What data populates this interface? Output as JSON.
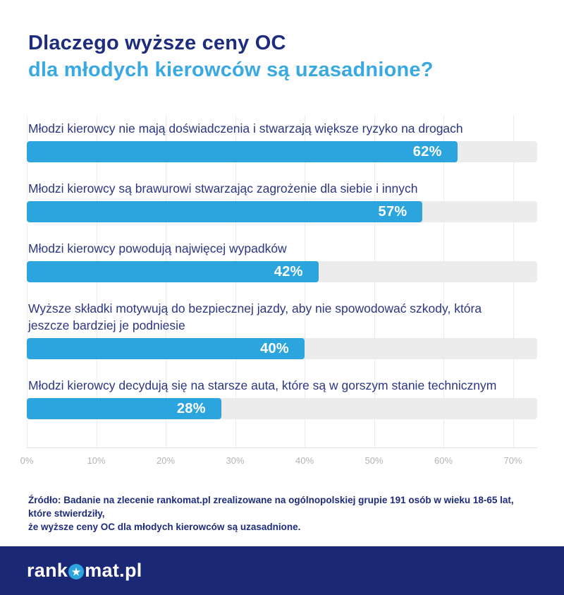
{
  "title": {
    "line1": "Dlaczego wyższe ceny OC",
    "line2": "dla młodych kierowców są uzasadnione?"
  },
  "chart_data": {
    "type": "bar",
    "orientation": "horizontal",
    "categories": [
      "Młodzi kierowcy nie mają doświadczenia i stwarzają większe ryzyko na drogach",
      "Młodzi kierowcy są brawurowi stwarzając zagrożenie dla siebie i innych",
      "Młodzi kierowcy powodują najwięcej wypadków",
      "Wyższe składki motywują do bezpiecznej jazdy, aby nie spowodować szkody, która jeszcze bardziej je podniesie",
      "Młodzi kierowcy decydują się na starsze auta, które są w gorszym stanie technicznym"
    ],
    "values": [
      62,
      57,
      42,
      40,
      28
    ],
    "value_labels": [
      "62%",
      "57%",
      "42%",
      "40%",
      "28%"
    ],
    "xlim": [
      0,
      73.5
    ],
    "x_tick_values": [
      0,
      10,
      20,
      30,
      40,
      50,
      60,
      70
    ],
    "x_ticks": [
      "0%",
      "10%",
      "20%",
      "30%",
      "40%",
      "50%",
      "60%",
      "70%"
    ],
    "grid": true,
    "legend": false,
    "bar_color": "#2ca5de",
    "track_color": "#ececec",
    "gridline_color": "#ebebeb"
  },
  "footer": {
    "lines": [
      "Źródło: Badanie na zlecenie rankomat.pl zrealizowane na ogólnopolskiej grupie 191 osób w wieku 18-65 lat, które stwierdziły,",
      "że wyższe ceny OC dla młodych kierowców są uzasadnione."
    ]
  },
  "brand": {
    "logo_prefix": "rank",
    "logo_suffix": "mat.pl",
    "band_color": "#1b2876",
    "accent_color": "#2ca5de"
  }
}
